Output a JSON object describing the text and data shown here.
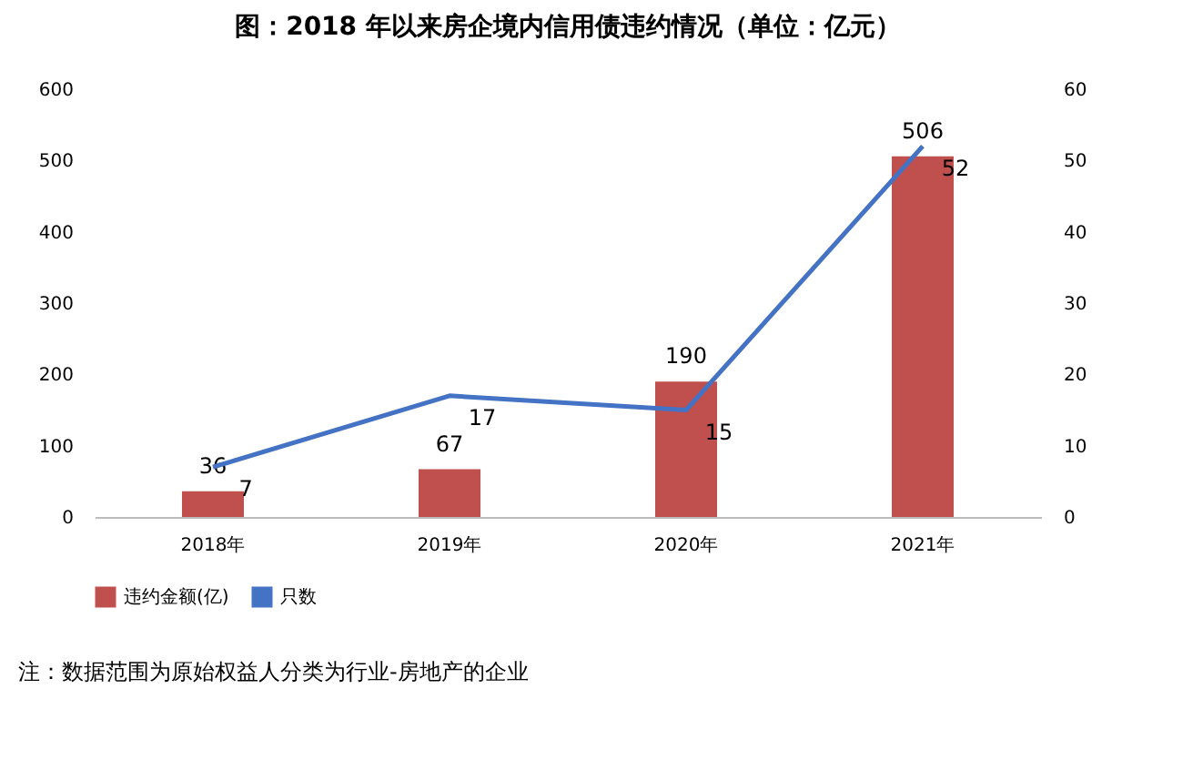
{
  "chart_data": {
    "type": "bar",
    "title": "图：2018 年以来房企境内信用债违约情况（单位：亿元）",
    "categories": [
      "2018年",
      "2019年",
      "2020年",
      "2021年"
    ],
    "series": [
      {
        "name": "违约金额(亿)",
        "color": "#c0504d",
        "values": [
          36,
          67,
          190,
          506
        ]
      },
      {
        "name": "只数",
        "type": "line",
        "axis": "y2",
        "color": "#4472c4",
        "values": [
          7,
          17,
          15,
          52
        ]
      }
    ],
    "ylim": [
      0,
      600
    ],
    "yticks": [
      0,
      100,
      200,
      300,
      400,
      500,
      600
    ],
    "y2lim": [
      0,
      60
    ],
    "y2ticks": [
      0,
      10,
      20,
      30,
      40,
      50,
      60
    ],
    "data_labels": true,
    "legend": "bottom",
    "grid": false,
    "annotations": [
      "注：数据范围为原始权益人分类为行业-房地产的企业"
    ]
  }
}
